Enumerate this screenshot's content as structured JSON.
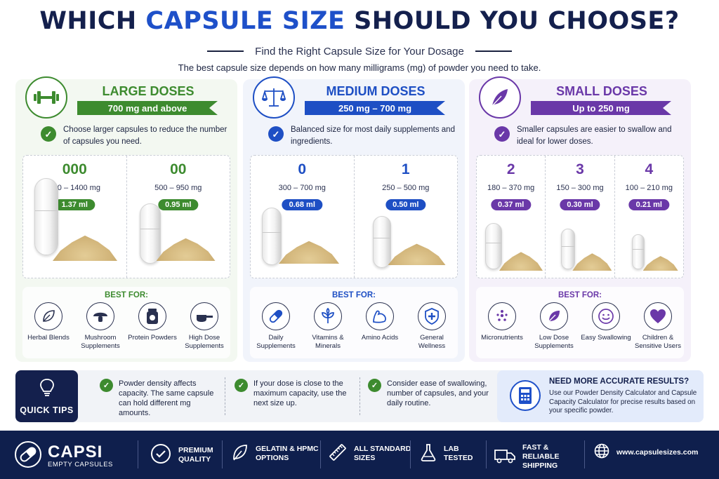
{
  "header": {
    "title_prefix": "WHICH ",
    "title_accent": "CAPSULE SIZE",
    "title_suffix": " SHOULD YOU CHOOSE?",
    "subtitle": "Find the Right Capsule Size for Your Dosage",
    "intro": "The best capsule size depends on how many milligrams (mg) of powder you need to take."
  },
  "colors": {
    "green": "#3d8b2f",
    "blue": "#1e4fc4",
    "purple": "#6a38a8",
    "navy": "#14204d"
  },
  "panels": [
    {
      "key": "large",
      "title": "LARGE DOSES",
      "range": "700 mg and above",
      "icon": "dumbbell-icon",
      "description": "Choose larger capsules to reduce the number of capsules you need.",
      "sizes": [
        {
          "name": "000",
          "range": "700 – 1400 mg",
          "ml": "1.37 ml"
        },
        {
          "name": "00",
          "range": "500 – 950 mg",
          "ml": "0.95 ml"
        }
      ],
      "best_for_title": "BEST FOR:",
      "best_for": [
        {
          "label": "Herbal Blends",
          "icon": "leaf-icon"
        },
        {
          "label": "Mushroom Supplements",
          "icon": "mushroom-icon"
        },
        {
          "label": "Protein Powders",
          "icon": "protein-jar-icon"
        },
        {
          "label": "High Dose Supplements",
          "icon": "scoop-icon"
        }
      ]
    },
    {
      "key": "medium",
      "title": "MEDIUM DOSES",
      "range": "250 mg – 700 mg",
      "icon": "balance-scale-icon",
      "description": "Balanced size for most daily supplements and ingredients.",
      "sizes": [
        {
          "name": "0",
          "range": "300 – 700 mg",
          "ml": "0.68 ml"
        },
        {
          "name": "1",
          "range": "250 – 500 mg",
          "ml": "0.50 ml"
        }
      ],
      "best_for_title": "BEST FOR:",
      "best_for": [
        {
          "label": "Daily Supplements",
          "icon": "capsule-icon"
        },
        {
          "label": "Vitamins & Minerals",
          "icon": "plant-icon"
        },
        {
          "label": "Amino Acids",
          "icon": "muscle-arm-icon"
        },
        {
          "label": "General Wellness",
          "icon": "shield-plus-icon"
        }
      ]
    },
    {
      "key": "small",
      "title": "SMALL DOSES",
      "range": "Up to 250 mg",
      "icon": "feather-icon",
      "description": "Smaller capsules are easier to swallow and ideal for lower doses.",
      "sizes": [
        {
          "name": "2",
          "range": "180 – 370 mg",
          "ml": "0.37 ml"
        },
        {
          "name": "3",
          "range": "150 – 300 mg",
          "ml": "0.30 ml"
        },
        {
          "name": "4",
          "range": "100 – 210 mg",
          "ml": "0.21 ml"
        }
      ],
      "best_for_title": "BEST FOR:",
      "best_for": [
        {
          "label": "Micronutrients",
          "icon": "dots-icon"
        },
        {
          "label": "Low Dose Supplements",
          "icon": "leaf-icon"
        },
        {
          "label": "Easy Swallowing",
          "icon": "smile-icon"
        },
        {
          "label": "Children & Sensitive Users",
          "icon": "heart-icon"
        }
      ]
    }
  ],
  "tips": {
    "label": "QUICK TIPS",
    "items": [
      "Powder density affects capacity. The same capsule can hold different mg amounts.",
      "If your dose is close to the maximum capacity, use the next size up.",
      "Consider ease of swallowing, number of capsules, and your daily routine."
    ],
    "calc_title": "NEED MORE ACCURATE RESULTS?",
    "calc_text": "Use our Powder Density Calculator and Capsule Capacity Calculator for precise results based on your specific powder."
  },
  "footer": {
    "brand_name": "CAPSI",
    "brand_sub": "EMPTY CAPSULES",
    "features": [
      {
        "label": "PREMIUM QUALITY",
        "icon": "check-circle-icon"
      },
      {
        "label": "GELATIN & HPMC OPTIONS",
        "icon": "leaf-icon"
      },
      {
        "label": "ALL STANDARD SIZES",
        "icon": "ruler-icon"
      },
      {
        "label": "LAB TESTED",
        "icon": "flask-icon"
      },
      {
        "label": "FAST & RELIABLE SHIPPING",
        "icon": "truck-icon"
      },
      {
        "label": "www.capsulesizes.com",
        "icon": "globe-icon"
      }
    ]
  }
}
